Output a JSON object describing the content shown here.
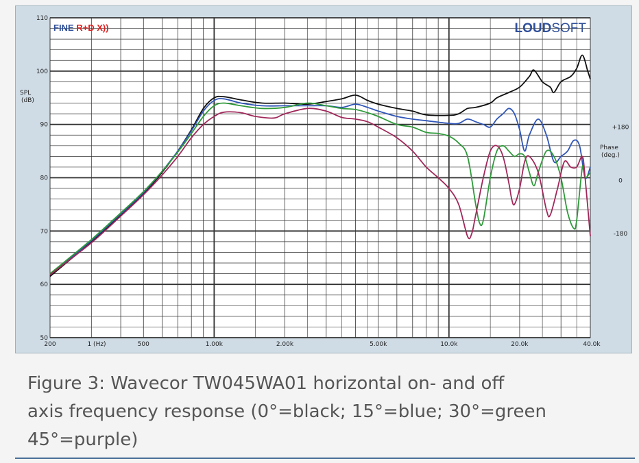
{
  "branding": {
    "left_logo_part1": "FINE ",
    "left_logo_part2": "R+D X))",
    "right_logo_part1": "LOUD",
    "right_logo_part2": "SOFT"
  },
  "caption": {
    "line1": "Figure 3: Wavecor TW045WA01 horizontal on- and off",
    "line2": "axis frequency response (0°=black; 15°=blue; 30°=green",
    "line3": "45°=purple)"
  },
  "colors": {
    "frame_bg": "#cfdce6",
    "plot_bg": "#ffffff",
    "grid": "#333333",
    "black": "#111111",
    "blue": "#2f55b8",
    "green": "#2f9a3a",
    "purple": "#a0285a",
    "logo_blue": "#2f4f9a",
    "logo_red": "#e02020"
  },
  "chart_data": {
    "type": "line",
    "xscale": "log",
    "xlim": [
      200,
      40000
    ],
    "ylim": [
      50,
      110
    ],
    "ylabel": "SPL\n(dB)",
    "y2label": "Phase\n(deg.)",
    "y_ticks": [
      50,
      60,
      70,
      80,
      90,
      100,
      110
    ],
    "y2_ticks": [
      {
        "label": "+180",
        "at_spl": 89.5
      },
      {
        "label": "0",
        "at_spl": 79.5
      },
      {
        "label": "-180",
        "at_spl": 69.5
      }
    ],
    "x_ticks": [
      {
        "value": 200,
        "label": "200"
      },
      {
        "value": 316,
        "label": "1 (Hz)"
      },
      {
        "value": 500,
        "label": "500"
      },
      {
        "value": 1000,
        "label": "1.00k"
      },
      {
        "value": 2000,
        "label": "2.00k"
      },
      {
        "value": 5000,
        "label": "5.00k"
      },
      {
        "value": 10000,
        "label": "10.0k"
      },
      {
        "value": 20000,
        "label": "20.0k"
      },
      {
        "value": 40000,
        "label": "40.0k"
      }
    ],
    "series": [
      {
        "name": "0°",
        "color": "black",
        "points": [
          [
            200,
            61.5
          ],
          [
            300,
            68
          ],
          [
            400,
            73
          ],
          [
            500,
            77
          ],
          [
            600,
            81
          ],
          [
            700,
            85
          ],
          [
            800,
            89
          ],
          [
            900,
            93
          ],
          [
            1000,
            95
          ],
          [
            1100,
            95.2
          ],
          [
            1300,
            94.6
          ],
          [
            1600,
            94
          ],
          [
            2000,
            94
          ],
          [
            2500,
            93.8
          ],
          [
            3000,
            94.3
          ],
          [
            3500,
            94.8
          ],
          [
            4000,
            95.5
          ],
          [
            4500,
            94.5
          ],
          [
            5000,
            93.8
          ],
          [
            6000,
            93
          ],
          [
            7000,
            92.5
          ],
          [
            8000,
            91.8
          ],
          [
            10000,
            91.7
          ],
          [
            11000,
            92
          ],
          [
            12000,
            93
          ],
          [
            13000,
            93.2
          ],
          [
            15000,
            94
          ],
          [
            16000,
            95
          ],
          [
            18000,
            96
          ],
          [
            20000,
            97
          ],
          [
            22000,
            99
          ],
          [
            23000,
            100.2
          ],
          [
            25000,
            98
          ],
          [
            27000,
            97
          ],
          [
            28000,
            96
          ],
          [
            30000,
            98
          ],
          [
            33000,
            99
          ],
          [
            35000,
            100.5
          ],
          [
            37000,
            103
          ],
          [
            39000,
            100
          ],
          [
            40000,
            98.5
          ]
        ]
      },
      {
        "name": "15°",
        "color": "blue",
        "points": [
          [
            200,
            61.8
          ],
          [
            300,
            68.2
          ],
          [
            400,
            73.2
          ],
          [
            500,
            77.2
          ],
          [
            600,
            81.2
          ],
          [
            700,
            85
          ],
          [
            800,
            88.8
          ],
          [
            900,
            92.5
          ],
          [
            1000,
            94.5
          ],
          [
            1100,
            94.8
          ],
          [
            1300,
            94
          ],
          [
            1600,
            93.5
          ],
          [
            2000,
            93.5
          ],
          [
            2500,
            93.5
          ],
          [
            3000,
            93.5
          ],
          [
            3500,
            93.2
          ],
          [
            4000,
            93.8
          ],
          [
            4500,
            93.2
          ],
          [
            5000,
            92.5
          ],
          [
            6000,
            91.5
          ],
          [
            7000,
            91
          ],
          [
            8000,
            90.7
          ],
          [
            10000,
            90.2
          ],
          [
            11000,
            90.2
          ],
          [
            12000,
            91
          ],
          [
            13000,
            90.5
          ],
          [
            14000,
            90
          ],
          [
            15000,
            89.5
          ],
          [
            16000,
            91
          ],
          [
            17000,
            92
          ],
          [
            18000,
            93
          ],
          [
            19000,
            92
          ],
          [
            20000,
            89
          ],
          [
            21000,
            85
          ],
          [
            22000,
            88
          ],
          [
            24000,
            91
          ],
          [
            26000,
            88
          ],
          [
            28000,
            83
          ],
          [
            30000,
            84
          ],
          [
            32000,
            85
          ],
          [
            34000,
            87
          ],
          [
            36000,
            86
          ],
          [
            38000,
            80
          ],
          [
            40000,
            82
          ]
        ]
      },
      {
        "name": "30°",
        "color": "green",
        "points": [
          [
            200,
            62
          ],
          [
            300,
            68.4
          ],
          [
            400,
            73.4
          ],
          [
            500,
            77.4
          ],
          [
            600,
            81.2
          ],
          [
            700,
            84.8
          ],
          [
            800,
            88.3
          ],
          [
            900,
            91.5
          ],
          [
            1000,
            93.5
          ],
          [
            1100,
            94
          ],
          [
            1300,
            93.5
          ],
          [
            1600,
            93
          ],
          [
            2000,
            93.2
          ],
          [
            2500,
            94
          ],
          [
            3000,
            93.5
          ],
          [
            3500,
            93
          ],
          [
            4000,
            92.8
          ],
          [
            4500,
            92.2
          ],
          [
            5000,
            91.5
          ],
          [
            6000,
            90
          ],
          [
            7000,
            89.5
          ],
          [
            8000,
            88.5
          ],
          [
            9000,
            88.3
          ],
          [
            10000,
            87.8
          ],
          [
            11000,
            86.5
          ],
          [
            12000,
            84
          ],
          [
            13000,
            75
          ],
          [
            13500,
            71.5
          ],
          [
            14000,
            72
          ],
          [
            15000,
            80
          ],
          [
            16000,
            85
          ],
          [
            17000,
            86
          ],
          [
            18000,
            85
          ],
          [
            19000,
            84
          ],
          [
            20000,
            84.5
          ],
          [
            21000,
            84
          ],
          [
            22000,
            81
          ],
          [
            23000,
            78.5
          ],
          [
            24000,
            81
          ],
          [
            26000,
            85
          ],
          [
            28000,
            84
          ],
          [
            30000,
            80
          ],
          [
            32000,
            73.5
          ],
          [
            34000,
            70.5
          ],
          [
            35000,
            72
          ],
          [
            37000,
            82
          ],
          [
            38000,
            80
          ],
          [
            40000,
            81
          ]
        ]
      },
      {
        "name": "45°",
        "color": "purple",
        "points": [
          [
            200,
            61.8
          ],
          [
            300,
            67.8
          ],
          [
            400,
            72.8
          ],
          [
            500,
            76.8
          ],
          [
            600,
            80.5
          ],
          [
            700,
            84
          ],
          [
            800,
            87.5
          ],
          [
            900,
            90
          ],
          [
            1000,
            91.5
          ],
          [
            1100,
            92.3
          ],
          [
            1300,
            92.2
          ],
          [
            1500,
            91.5
          ],
          [
            1800,
            91.2
          ],
          [
            2000,
            92
          ],
          [
            2500,
            93
          ],
          [
            3000,
            92.5
          ],
          [
            3500,
            91.3
          ],
          [
            4000,
            91
          ],
          [
            4500,
            90.5
          ],
          [
            5000,
            89.5
          ],
          [
            6000,
            87.5
          ],
          [
            7000,
            85
          ],
          [
            8000,
            82
          ],
          [
            9000,
            80
          ],
          [
            10000,
            78
          ],
          [
            11000,
            75
          ],
          [
            12000,
            69
          ],
          [
            12500,
            69.5
          ],
          [
            13000,
            73
          ],
          [
            14000,
            80
          ],
          [
            15000,
            85
          ],
          [
            16000,
            86
          ],
          [
            17000,
            84
          ],
          [
            18000,
            79
          ],
          [
            18500,
            76
          ],
          [
            19000,
            75
          ],
          [
            20000,
            78
          ],
          [
            21000,
            83
          ],
          [
            22000,
            84
          ],
          [
            24000,
            81
          ],
          [
            26000,
            74
          ],
          [
            27000,
            73
          ],
          [
            29000,
            78
          ],
          [
            31000,
            83
          ],
          [
            33000,
            82
          ],
          [
            35000,
            82
          ],
          [
            37000,
            84
          ],
          [
            38000,
            80
          ],
          [
            40000,
            69
          ]
        ]
      }
    ]
  }
}
